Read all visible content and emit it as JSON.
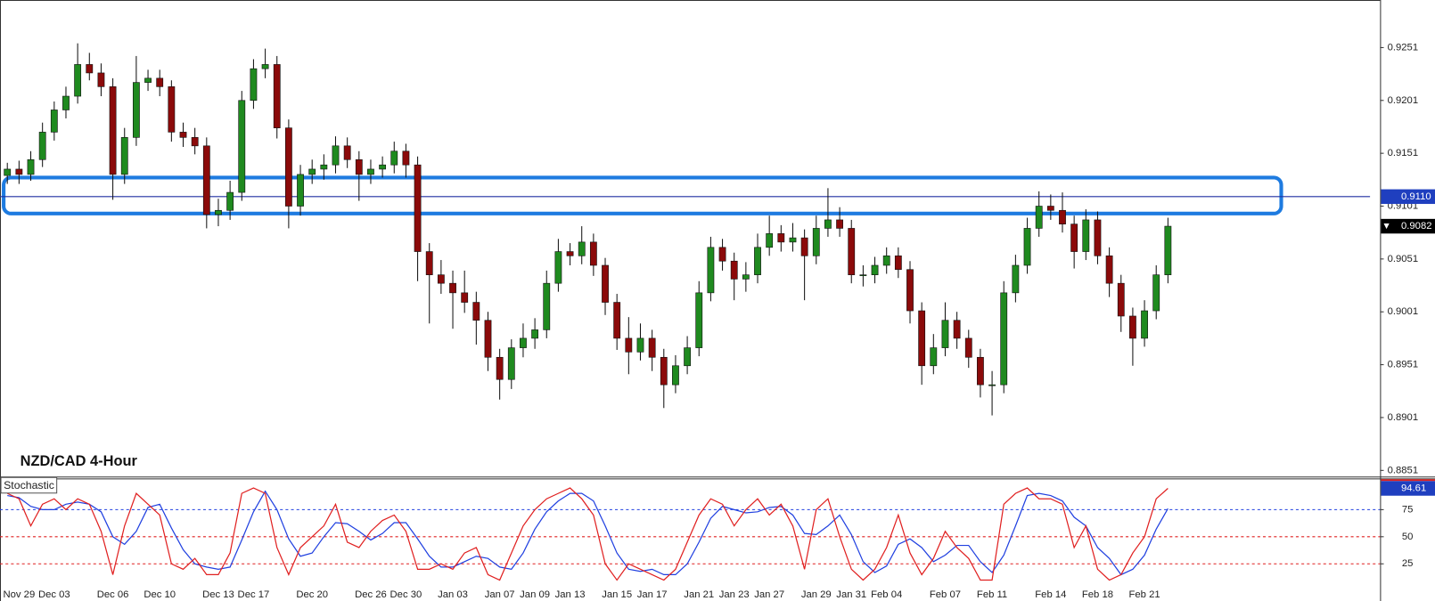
{
  "chart_data": [
    {
      "type": "candlestick",
      "title": "NZD/CAD 4-Hour",
      "categories": [
        null,
        "Nov 29",
        null,
        null,
        "Dec 03",
        null,
        null,
        null,
        null,
        "Dec 06",
        null,
        null,
        null,
        "Dec 10",
        null,
        null,
        null,
        null,
        "Dec 13",
        null,
        null,
        "Dec 17",
        null,
        null,
        null,
        null,
        "Dec 20",
        null,
        null,
        null,
        null,
        "Dec 26",
        null,
        null,
        "Dec 30",
        null,
        null,
        null,
        "Jan 03",
        null,
        null,
        null,
        "Jan 07",
        null,
        null,
        "Jan 09",
        null,
        null,
        "Jan 13",
        null,
        null,
        null,
        "Jan 15",
        null,
        null,
        "Jan 17",
        null,
        null,
        null,
        "Jan 21",
        null,
        null,
        "Jan 23",
        null,
        null,
        "Jan 27",
        null,
        null,
        null,
        "Jan 29",
        null,
        null,
        "Jan 31",
        null,
        null,
        "Feb 04",
        null,
        null,
        null,
        null,
        "Feb 07",
        null,
        null,
        null,
        "Feb 11",
        null,
        null,
        null,
        null,
        "Feb 14",
        null,
        null,
        null,
        "Feb 18",
        null,
        null,
        null,
        "Feb 21",
        null,
        null
      ],
      "open": [
        0.913,
        0.9136,
        0.9131,
        0.9145,
        0.9171,
        0.9192,
        0.9205,
        0.9235,
        0.9227,
        0.9214,
        0.9131,
        0.9166,
        0.9218,
        0.9222,
        0.9214,
        0.9171,
        0.9166,
        0.9158,
        0.9093,
        0.9097,
        0.9114,
        0.9201,
        0.9231,
        0.9235,
        0.9175,
        0.9101,
        0.9131,
        0.9136,
        0.914,
        0.9158,
        0.9145,
        0.9131,
        0.9136,
        0.914,
        0.9153,
        0.914,
        0.9058,
        0.9036,
        0.9028,
        0.9019,
        0.901,
        0.8993,
        0.8958,
        0.8937,
        0.8967,
        0.8976,
        0.8984,
        0.9028,
        0.9058,
        0.9054,
        0.9067,
        0.9045,
        0.901,
        0.8976,
        0.8963,
        0.8976,
        0.8958,
        0.8932,
        0.895,
        0.8967,
        0.9019,
        0.9062,
        0.9049,
        0.9032,
        0.9036,
        0.9062,
        0.9075,
        0.9067,
        0.9071,
        0.9054,
        0.908,
        0.9088,
        0.908,
        0.9036,
        0.9036,
        0.9045,
        0.9054,
        0.9041,
        0.9002,
        0.895,
        0.8967,
        0.8993,
        0.8976,
        0.8958,
        0.8932,
        0.8932,
        0.9019,
        0.9045,
        0.908,
        0.9101,
        0.9097,
        0.9084,
        0.9058,
        0.9088,
        0.9054,
        0.9028,
        0.8997,
        0.8976,
        0.9002,
        0.9036
      ],
      "high": [
        0.9142,
        0.9144,
        0.9153,
        0.918,
        0.92,
        0.9214,
        0.9255,
        0.9246,
        0.9236,
        0.9222,
        0.9175,
        0.9243,
        0.923,
        0.923,
        0.922,
        0.918,
        0.9175,
        0.9166,
        0.9108,
        0.9125,
        0.921,
        0.924,
        0.925,
        0.9243,
        0.9183,
        0.914,
        0.9145,
        0.915,
        0.9167,
        0.9166,
        0.9153,
        0.9145,
        0.9148,
        0.9162,
        0.916,
        0.9148,
        0.9066,
        0.905,
        0.904,
        0.904,
        0.902,
        0.9001,
        0.8966,
        0.8975,
        0.899,
        0.8995,
        0.904,
        0.907,
        0.9066,
        0.9082,
        0.9075,
        0.9052,
        0.9018,
        0.8996,
        0.899,
        0.8984,
        0.8966,
        0.896,
        0.8978,
        0.903,
        0.9072,
        0.907,
        0.9057,
        0.9048,
        0.9075,
        0.9092,
        0.9083,
        0.9085,
        0.9079,
        0.9092,
        0.9118,
        0.91,
        0.9088,
        0.9045,
        0.9053,
        0.9062,
        0.9062,
        0.9049,
        0.901,
        0.898,
        0.901,
        0.9001,
        0.8984,
        0.8966,
        0.8945,
        0.903,
        0.9055,
        0.909,
        0.9115,
        0.9112,
        0.9114,
        0.9092,
        0.9098,
        0.9096,
        0.9062,
        0.9036,
        0.9005,
        0.9012,
        0.9045,
        0.909
      ],
      "low": [
        0.9122,
        0.9122,
        0.9125,
        0.9138,
        0.9163,
        0.9184,
        0.9198,
        0.922,
        0.9205,
        0.9107,
        0.9122,
        0.9158,
        0.921,
        0.9205,
        0.9162,
        0.9157,
        0.915,
        0.908,
        0.9082,
        0.9088,
        0.9106,
        0.9193,
        0.9222,
        0.9165,
        0.908,
        0.9092,
        0.9122,
        0.9126,
        0.9132,
        0.9137,
        0.9106,
        0.9122,
        0.9128,
        0.9132,
        0.9128,
        0.903,
        0.899,
        0.9018,
        0.8985,
        0.9,
        0.897,
        0.8945,
        0.8918,
        0.8928,
        0.8958,
        0.8966,
        0.8976,
        0.902,
        0.9045,
        0.9046,
        0.9035,
        0.8998,
        0.8965,
        0.8942,
        0.8955,
        0.8945,
        0.891,
        0.8924,
        0.8942,
        0.8959,
        0.9011,
        0.904,
        0.9012,
        0.902,
        0.9028,
        0.9054,
        0.9058,
        0.9058,
        0.9012,
        0.9046,
        0.9072,
        0.9072,
        0.9028,
        0.9025,
        0.9028,
        0.9037,
        0.9033,
        0.899,
        0.8932,
        0.8942,
        0.8959,
        0.8966,
        0.8948,
        0.892,
        0.8903,
        0.8924,
        0.901,
        0.9037,
        0.9072,
        0.9088,
        0.9076,
        0.9042,
        0.905,
        0.9046,
        0.9015,
        0.8982,
        0.895,
        0.8968,
        0.8994,
        0.9028
      ],
      "close": [
        0.9136,
        0.9131,
        0.9145,
        0.9171,
        0.9192,
        0.9205,
        0.9235,
        0.9227,
        0.9214,
        0.9131,
        0.9166,
        0.9218,
        0.9222,
        0.9214,
        0.9171,
        0.9166,
        0.9158,
        0.9093,
        0.9097,
        0.9114,
        0.9201,
        0.9231,
        0.9235,
        0.9175,
        0.9101,
        0.9131,
        0.9136,
        0.914,
        0.9158,
        0.9145,
        0.9131,
        0.9136,
        0.914,
        0.9153,
        0.914,
        0.9058,
        0.9036,
        0.9028,
        0.9019,
        0.901,
        0.8993,
        0.8958,
        0.8937,
        0.8967,
        0.8976,
        0.8984,
        0.9028,
        0.9058,
        0.9054,
        0.9067,
        0.9045,
        0.901,
        0.8976,
        0.8963,
        0.8976,
        0.8958,
        0.8932,
        0.895,
        0.8967,
        0.9019,
        0.9062,
        0.9049,
        0.9032,
        0.9036,
        0.9062,
        0.9075,
        0.9067,
        0.9071,
        0.9054,
        0.908,
        0.9088,
        0.908,
        0.9036,
        0.9036,
        0.9045,
        0.9054,
        0.9041,
        0.9002,
        0.895,
        0.8967,
        0.8993,
        0.8976,
        0.8958,
        0.8932,
        0.8932,
        0.9019,
        0.9045,
        0.908,
        0.9101,
        0.9097,
        0.9084,
        0.9058,
        0.9088,
        0.9054,
        0.9028,
        0.8997,
        0.8976,
        0.9002,
        0.9036,
        0.9082
      ],
      "up_color": "#1f8a1f",
      "down_color": "#8b0a0a",
      "ylim": [
        0.8846,
        0.9296
      ],
      "yticks": [
        0.9251,
        0.9201,
        0.9151,
        0.9101,
        0.9051,
        0.9001,
        0.8951,
        0.8901,
        0.8851
      ],
      "hline": {
        "value": 0.911,
        "label": "0.9110"
      },
      "hline_color": "#1f2fa0",
      "zone": [
        0.9094,
        0.9128
      ],
      "zone_color": "#1e7be0"
    },
    {
      "type": "line",
      "title": "Stochastic",
      "series": [
        {
          "color": "#e02020",
          "values": [
            90,
            85,
            60,
            80,
            85,
            75,
            85,
            80,
            55,
            15,
            60,
            90,
            80,
            70,
            25,
            20,
            30,
            15,
            15,
            35,
            90,
            95,
            90,
            40,
            15,
            40,
            50,
            60,
            80,
            45,
            40,
            55,
            65,
            70,
            55,
            20,
            20,
            25,
            20,
            35,
            40,
            15,
            10,
            35,
            60,
            75,
            85,
            90,
            95,
            85,
            70,
            25,
            10,
            25,
            20,
            15,
            10,
            20,
            45,
            70,
            85,
            80,
            60,
            75,
            85,
            70,
            80,
            60,
            20,
            75,
            85,
            50,
            20,
            10,
            20,
            40,
            70,
            35,
            15,
            30,
            55,
            40,
            30,
            10,
            10,
            80,
            90,
            95,
            85,
            85,
            80,
            40,
            60,
            20,
            10,
            15,
            35,
            50,
            85,
            94.61
          ]
        },
        {
          "color": "#2040e0",
          "values": [
            88,
            86,
            78,
            75,
            75,
            80,
            82,
            80,
            73,
            50,
            43,
            55,
            77,
            80,
            58,
            38,
            25,
            22,
            20,
            22,
            47,
            73,
            92,
            75,
            48,
            32,
            35,
            50,
            63,
            62,
            55,
            47,
            53,
            63,
            63,
            48,
            32,
            22,
            22,
            27,
            32,
            30,
            22,
            20,
            35,
            57,
            73,
            83,
            90,
            90,
            83,
            60,
            35,
            20,
            18,
            20,
            15,
            15,
            25,
            45,
            67,
            78,
            75,
            72,
            73,
            77,
            78,
            70,
            53,
            52,
            60,
            70,
            52,
            27,
            17,
            23,
            43,
            48,
            40,
            27,
            33,
            42,
            42,
            27,
            17,
            33,
            60,
            88,
            90,
            88,
            83,
            68,
            60,
            40,
            30,
            15,
            20,
            33,
            57,
            76
          ]
        }
      ],
      "ylim": [
        -9.3,
        103.8
      ],
      "yticks": [
        25,
        50,
        75
      ],
      "level_colors": [
        "#e02020",
        "#e02020",
        "#2040e0"
      ]
    }
  ]
}
